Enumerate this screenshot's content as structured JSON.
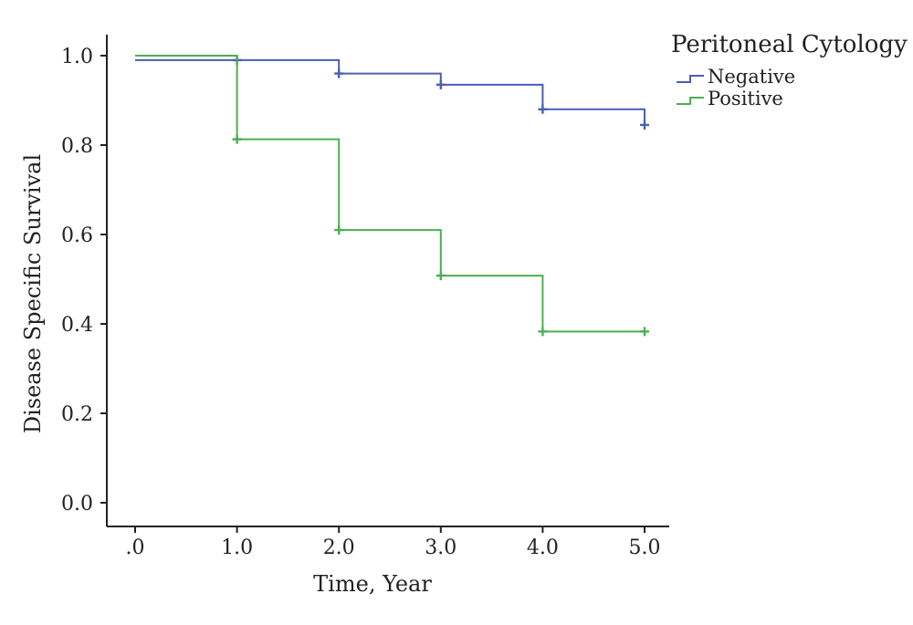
{
  "chart_data": {
    "type": "line",
    "subtype": "step",
    "xlabel": "Time, Year",
    "ylabel": "Disease Specific Survival",
    "xlim": [
      0,
      5
    ],
    "ylim": [
      0,
      1
    ],
    "x_ticks": [
      0,
      1,
      2,
      3,
      4,
      5
    ],
    "x_tick_labels": [
      ".0",
      "1.0",
      "2.0",
      "3.0",
      "4.0",
      "5.0"
    ],
    "y_ticks": [
      0,
      0.2,
      0.4,
      0.6,
      0.8,
      1.0
    ],
    "y_tick_labels": [
      "0.0",
      "0.2",
      "0.4",
      "0.6",
      "0.8",
      "1.0"
    ],
    "grid": false,
    "legend": {
      "title": "Peritoneal Cytology",
      "placement": "top-right outside"
    },
    "series": [
      {
        "name": "Negative",
        "color": "#4a5fb0",
        "x": [
          0,
          1,
          2,
          3,
          4,
          5
        ],
        "y": [
          0.99,
          0.99,
          0.96,
          0.935,
          0.88,
          0.845
        ],
        "censor_marks": [
          {
            "x": 1,
            "y": 0.99
          },
          {
            "x": 2,
            "y": 0.96
          },
          {
            "x": 3,
            "y": 0.935
          },
          {
            "x": 4,
            "y": 0.88
          },
          {
            "x": 5,
            "y": 0.845
          }
        ]
      },
      {
        "name": "Positive",
        "color": "#4caf50",
        "x": [
          0,
          1,
          2,
          3,
          4,
          5
        ],
        "y": [
          1.0,
          0.813,
          0.61,
          0.508,
          0.383,
          0.383
        ],
        "censor_marks": [
          {
            "x": 1,
            "y": 0.813
          },
          {
            "x": 2,
            "y": 0.61
          },
          {
            "x": 3,
            "y": 0.508
          },
          {
            "x": 4,
            "y": 0.383
          },
          {
            "x": 5,
            "y": 0.383
          }
        ]
      }
    ]
  }
}
